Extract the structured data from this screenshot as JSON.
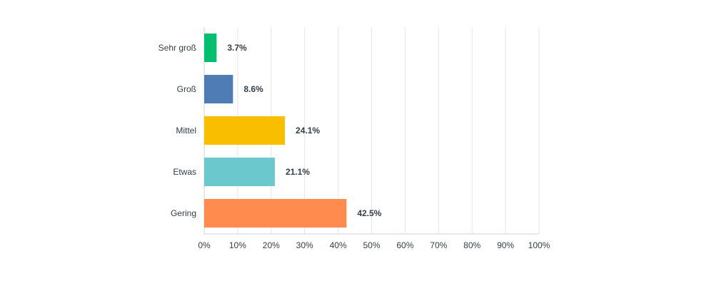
{
  "chart_data": {
    "type": "bar",
    "orientation": "horizontal",
    "categories": [
      "Sehr groß",
      "Groß",
      "Mittel",
      "Etwas",
      "Gering"
    ],
    "values": [
      3.7,
      8.6,
      24.1,
      21.1,
      42.5
    ],
    "value_labels": [
      "3.7%",
      "8.6%",
      "24.1%",
      "21.1%",
      "42.5%"
    ],
    "colors": [
      "#00bf6f",
      "#507cb6",
      "#f9be00",
      "#6bc8cd",
      "#ff8b4f"
    ],
    "xlim": [
      0,
      100
    ],
    "ticks": [
      0,
      10,
      20,
      30,
      40,
      50,
      60,
      70,
      80,
      90,
      100
    ],
    "tick_labels": [
      "0%",
      "10%",
      "20%",
      "30%",
      "40%",
      "50%",
      "60%",
      "70%",
      "80%",
      "90%",
      "100%"
    ],
    "grid": true,
    "title": "",
    "xlabel": "",
    "ylabel": ""
  }
}
